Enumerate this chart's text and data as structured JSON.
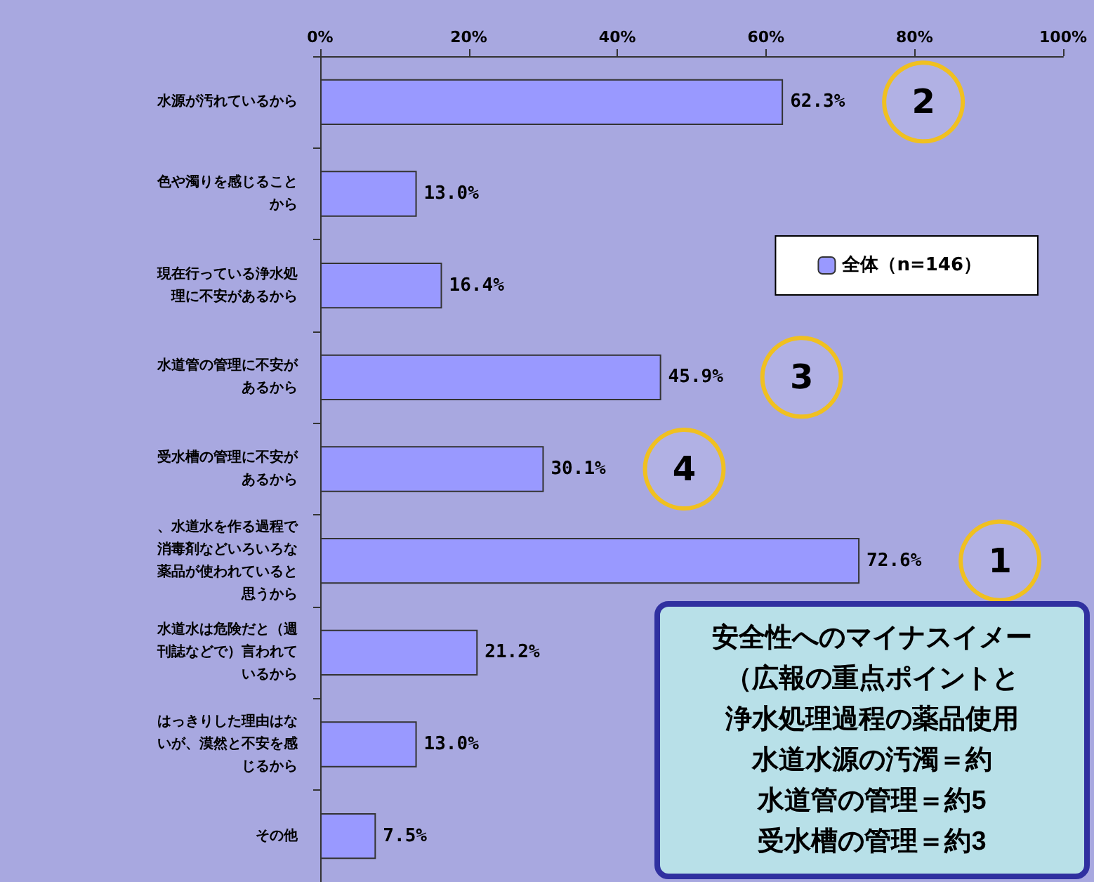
{
  "chart_data": {
    "type": "bar",
    "orientation": "horizontal",
    "categories": [
      "水源が汚れているから",
      "色や濁りを感じることから",
      "現在行っている浄水処理に不安があるから",
      "水道管の管理に不安があるから",
      "受水槽の管理に不安があるから",
      "、水道水を作る過程で消毒剤などいろいろな薬品が使われていると思うから",
      "水道水は危険だと（週刊誌などで）言われているから",
      "はっきりした理由はないが、漠然と不安を感じるから",
      "その他"
    ],
    "series": [
      {
        "name": "全体（n=146）",
        "color": "#9999ff",
        "values": [
          62.3,
          13.0,
          16.4,
          45.9,
          30.1,
          72.6,
          21.2,
          13.0,
          7.5
        ],
        "value_labels": [
          "62.3%",
          "13.0%",
          "16.4%",
          "45.9%",
          "30.1%",
          "72.6%",
          "21.2%",
          "13.0%",
          "7.5%"
        ]
      }
    ],
    "xlim": [
      0,
      100
    ],
    "xticks": [
      {
        "value": 0,
        "label": "0%"
      },
      {
        "value": 20,
        "label": "20%"
      },
      {
        "value": 40,
        "label": "40%"
      },
      {
        "value": 60,
        "label": "60%"
      },
      {
        "value": 80,
        "label": "80%"
      },
      {
        "value": 100,
        "label": "100%"
      }
    ],
    "legend": "top right",
    "grid": false,
    "annotations": [
      "1",
      "2",
      "3",
      "4",
      "安全性へのマイナスイメー",
      "（広報の重点ポイントと",
      "浄水処理過程の薬品使用",
      "水道水源の汚濁＝約",
      "水道管の管理＝約5",
      "受水槽の管理＝約3"
    ]
  }
}
